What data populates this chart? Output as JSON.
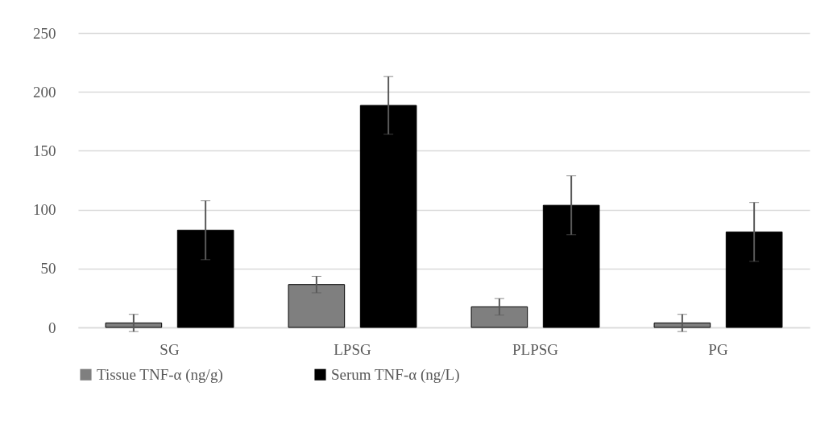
{
  "chart_data": {
    "type": "bar",
    "categories": [
      "SG",
      "LPSG",
      "PLPSG",
      "PG"
    ],
    "series": [
      {
        "name": "Tissue TNF-α (ng/g)",
        "color": "#7f7f7f",
        "values": [
          3.8,
          36.4,
          17.5,
          3.8
        ],
        "errors": [
          7.3,
          7,
          7,
          7.3
        ]
      },
      {
        "name": "Serum TNF-α (ng/L)",
        "color": "#000000",
        "values": [
          82.5,
          188.5,
          103.7,
          81.1
        ],
        "errors": [
          25,
          24.5,
          25,
          25
        ]
      }
    ],
    "ylim": [
      0,
      250
    ],
    "yticks": [
      0,
      50,
      100,
      150,
      200,
      250
    ],
    "grid": "y",
    "legend": "bottom"
  }
}
